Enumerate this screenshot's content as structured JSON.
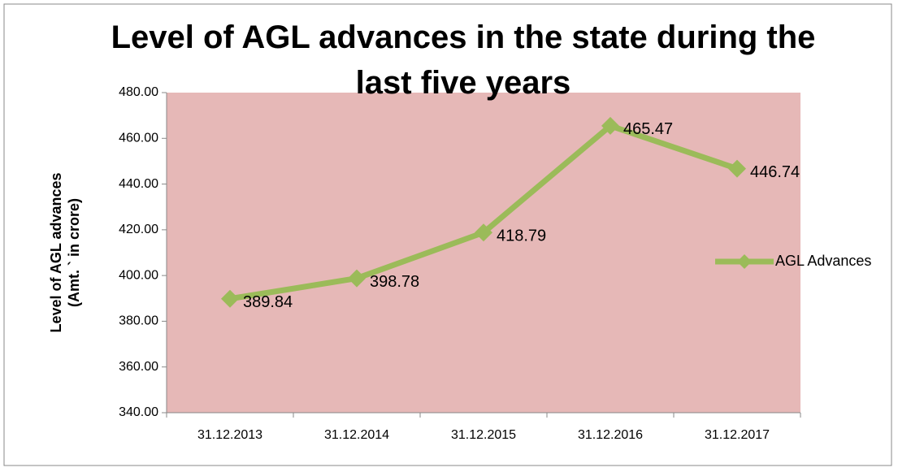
{
  "chart_data": {
    "type": "line",
    "title": "Level of AGL advances in the state during the last five years",
    "ylabel": [
      "Level of AGL advances",
      "(Amt. ` in crore)"
    ],
    "categories": [
      "31.12.2013",
      "31.12.2014",
      "31.12.2015",
      "31.12.2016",
      "31.12.2017"
    ],
    "series": [
      {
        "name": "AGL Advances",
        "color": "#9bbb59",
        "values": [
          389.84,
          398.78,
          418.79,
          465.47,
          446.74
        ]
      }
    ],
    "ylim": [
      340,
      480
    ],
    "yticks": [
      {
        "value": 340,
        "label": "340.00"
      },
      {
        "value": 360,
        "label": "360.00"
      },
      {
        "value": 380,
        "label": "380.00"
      },
      {
        "value": 400,
        "label": "400.00"
      },
      {
        "value": 420,
        "label": "420.00"
      },
      {
        "value": 440,
        "label": "440.00"
      },
      {
        "value": 460,
        "label": "460.00"
      },
      {
        "value": 480,
        "label": "480.00"
      }
    ],
    "legend": "right"
  }
}
